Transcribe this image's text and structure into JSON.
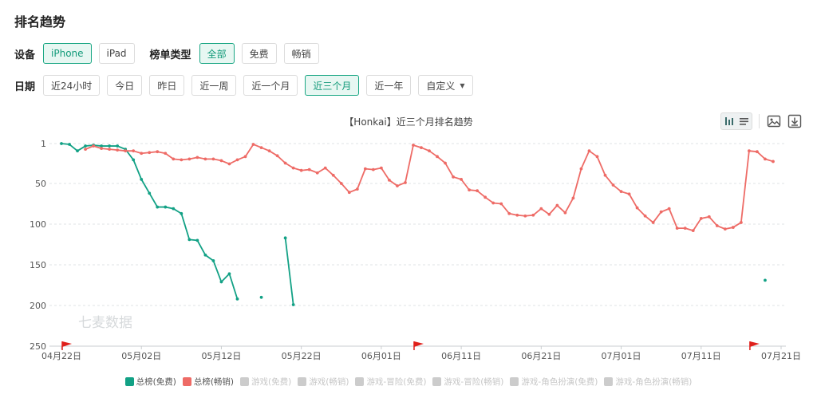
{
  "section_title": "排名趋势",
  "filters": {
    "device_label": "设备",
    "devices": [
      {
        "label": "iPhone",
        "active": true
      },
      {
        "label": "iPad",
        "active": false
      }
    ],
    "list_type_label": "榜单类型",
    "list_types": [
      {
        "label": "全部",
        "active": true
      },
      {
        "label": "免费",
        "active": false
      },
      {
        "label": "畅销",
        "active": false
      }
    ],
    "date_label": "日期",
    "dates": [
      {
        "label": "近24小时",
        "active": false
      },
      {
        "label": "今日",
        "active": false
      },
      {
        "label": "昨日",
        "active": false
      },
      {
        "label": "近一周",
        "active": false
      },
      {
        "label": "近一个月",
        "active": false
      },
      {
        "label": "近三个月",
        "active": true
      },
      {
        "label": "近一年",
        "active": false
      }
    ],
    "custom_label": "自定义"
  },
  "chart_title": "【Honkai】近三个月排名趋势",
  "watermark": "七麦数据",
  "icons": [
    "bar-chart-icon",
    "list-icon",
    "image-icon",
    "download-icon"
  ],
  "colors": {
    "accent": "#1aa784",
    "free": "#12a185",
    "grossing": "#ee6b66",
    "flag": "#e0201b",
    "muted": "#cccccc"
  },
  "legend": [
    {
      "label": "总榜(免费)",
      "color": "#12a185",
      "on": true
    },
    {
      "label": "总榜(畅销)",
      "color": "#ee6b66",
      "on": true
    },
    {
      "label": "游戏(免费)",
      "color": "#cccccc",
      "on": false
    },
    {
      "label": "游戏(畅销)",
      "color": "#cccccc",
      "on": false
    },
    {
      "label": "游戏-冒险(免费)",
      "color": "#cccccc",
      "on": false
    },
    {
      "label": "游戏-冒险(畅销)",
      "color": "#cccccc",
      "on": false
    },
    {
      "label": "游戏-角色扮演(免费)",
      "color": "#cccccc",
      "on": false
    },
    {
      "label": "游戏-角色扮演(畅销)",
      "color": "#cccccc",
      "on": false
    }
  ],
  "chart_data": {
    "type": "line",
    "y_inverted": true,
    "ylim": [
      1,
      250
    ],
    "y_ticks": [
      1,
      50,
      100,
      150,
      200,
      250
    ],
    "x_ticks": [
      "04月22日",
      "05月02日",
      "05月12日",
      "05月22日",
      "06月01日",
      "06月11日",
      "06月21日",
      "07月01日",
      "07月11日",
      "07月21日"
    ],
    "x_tick_days": [
      0,
      10,
      20,
      30,
      40,
      50,
      60,
      70,
      80,
      90
    ],
    "flag_days": [
      0,
      44,
      86
    ],
    "grid": true,
    "legend_position": "bottom",
    "series": [
      {
        "name": "总榜(免费)",
        "color": "#12a185",
        "points": [
          [
            0,
            1
          ],
          [
            1,
            2
          ],
          [
            2,
            10
          ],
          [
            3,
            4
          ],
          [
            4,
            3
          ],
          [
            5,
            4
          ],
          [
            6,
            4
          ],
          [
            7,
            4
          ],
          [
            8,
            8
          ],
          [
            9,
            21
          ],
          [
            10,
            45
          ],
          [
            11,
            62
          ],
          [
            12,
            79
          ],
          [
            13,
            79
          ],
          [
            14,
            81
          ],
          [
            15,
            87
          ],
          [
            16,
            119
          ],
          [
            17,
            120
          ],
          [
            18,
            138
          ],
          [
            19,
            145
          ],
          [
            20,
            171
          ],
          [
            21,
            161
          ],
          [
            22,
            192
          ],
          null,
          [
            25,
            190
          ],
          null,
          [
            28,
            117
          ],
          [
            29,
            199
          ],
          null,
          [
            88,
            169
          ]
        ]
      },
      {
        "name": "总榜(畅销)",
        "color": "#ee6b66",
        "points": [
          [
            3,
            8
          ],
          [
            4,
            4
          ],
          [
            5,
            7
          ],
          [
            6,
            8
          ],
          [
            7,
            9
          ],
          [
            8,
            10
          ],
          [
            9,
            10
          ],
          [
            10,
            13
          ],
          [
            11,
            12
          ],
          [
            12,
            11
          ],
          [
            13,
            13
          ],
          [
            14,
            20
          ],
          [
            15,
            21
          ],
          [
            16,
            20
          ],
          [
            17,
            18
          ],
          [
            18,
            20
          ],
          [
            19,
            20
          ],
          [
            20,
            22
          ],
          [
            21,
            26
          ],
          [
            22,
            21
          ],
          [
            23,
            17
          ],
          [
            24,
            2
          ],
          [
            25,
            6
          ],
          [
            26,
            10
          ],
          [
            27,
            16
          ],
          [
            28,
            25
          ],
          [
            29,
            31
          ],
          [
            30,
            34
          ],
          [
            31,
            33
          ],
          [
            32,
            37
          ],
          [
            33,
            31
          ],
          [
            34,
            40
          ],
          [
            35,
            50
          ],
          [
            36,
            61
          ],
          [
            37,
            57
          ],
          [
            38,
            32
          ],
          [
            39,
            33
          ],
          [
            40,
            31
          ],
          [
            41,
            46
          ],
          [
            42,
            53
          ],
          [
            43,
            49
          ],
          [
            44,
            3
          ],
          [
            45,
            6
          ],
          [
            46,
            10
          ],
          [
            47,
            17
          ],
          [
            48,
            25
          ],
          [
            49,
            42
          ],
          [
            50,
            45
          ],
          [
            51,
            58
          ],
          [
            52,
            59
          ],
          [
            53,
            67
          ],
          [
            54,
            74
          ],
          [
            55,
            75
          ],
          [
            56,
            87
          ],
          [
            57,
            89
          ],
          [
            58,
            90
          ],
          [
            59,
            89
          ],
          [
            60,
            81
          ],
          [
            61,
            88
          ],
          [
            62,
            77
          ],
          [
            63,
            86
          ],
          [
            64,
            68
          ],
          [
            65,
            32
          ],
          [
            66,
            10
          ],
          [
            67,
            17
          ],
          [
            68,
            40
          ],
          [
            69,
            52
          ],
          [
            70,
            60
          ],
          [
            71,
            63
          ],
          [
            72,
            80
          ],
          [
            73,
            90
          ],
          [
            74,
            98
          ],
          [
            75,
            85
          ],
          [
            76,
            81
          ],
          [
            77,
            105
          ],
          [
            78,
            105
          ],
          [
            79,
            108
          ],
          [
            80,
            93
          ],
          [
            81,
            91
          ],
          [
            82,
            102
          ],
          [
            83,
            106
          ],
          [
            84,
            104
          ],
          [
            85,
            98
          ],
          [
            86,
            10
          ],
          [
            87,
            11
          ],
          [
            88,
            20
          ],
          [
            89,
            23
          ]
        ]
      }
    ]
  }
}
